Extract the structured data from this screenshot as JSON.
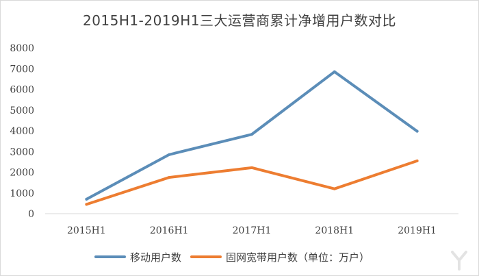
{
  "chart_data": {
    "type": "line",
    "title": "2015H1-2019H1三大运营商累计净增用户数对比",
    "categories": [
      "2015H1",
      "2016H1",
      "2017H1",
      "2018H1",
      "2019H1"
    ],
    "ylim": [
      0,
      8000
    ],
    "yticks": [
      0,
      1000,
      2000,
      3000,
      4000,
      5000,
      6000,
      7000,
      8000
    ],
    "grid": false,
    "legend_position": "bottom",
    "series": [
      {
        "name": "移动用户数",
        "color": "#5b8db8",
        "values": [
          700,
          2850,
          3830,
          6850,
          3980
        ]
      },
      {
        "name": "固网宽带用户数（单位：万户）",
        "color": "#ed7d31",
        "values": [
          450,
          1750,
          2220,
          1200,
          2550
        ]
      }
    ]
  }
}
